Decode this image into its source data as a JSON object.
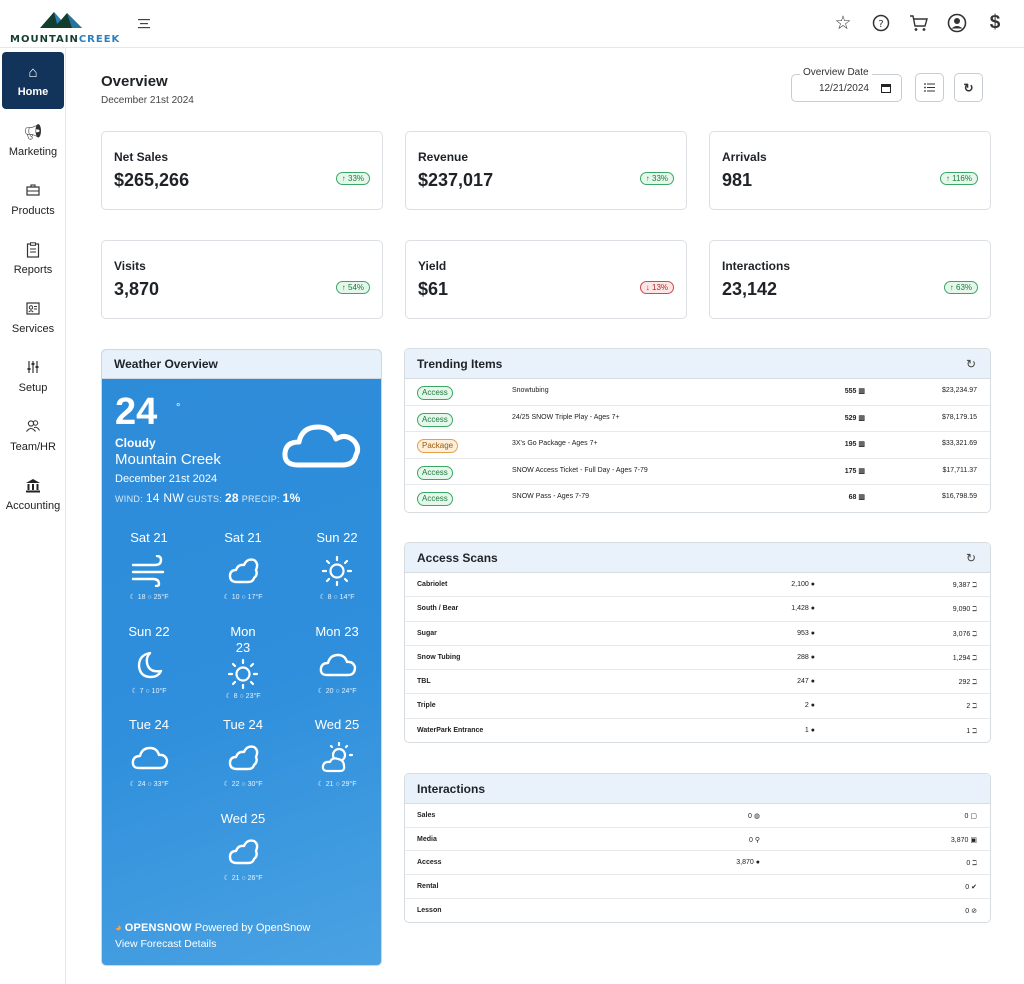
{
  "brand": {
    "name_a": "MOUNTAIN",
    "name_b": "CREEK"
  },
  "topbar": {
    "icons": [
      "star-icon",
      "help-icon",
      "cart-icon",
      "account-icon",
      "dollar-icon"
    ]
  },
  "sidebar": {
    "items": [
      {
        "label": "Home",
        "icon": "home-icon",
        "active": true
      },
      {
        "label": "Marketing",
        "icon": "megaphone-icon"
      },
      {
        "label": "Products",
        "icon": "briefcase-icon"
      },
      {
        "label": "Reports",
        "icon": "clipboard-icon"
      },
      {
        "label": "Services",
        "icon": "id-card-icon"
      },
      {
        "label": "Setup",
        "icon": "sliders-icon"
      },
      {
        "label": "Team/HR",
        "icon": "team-icon"
      },
      {
        "label": "Accounting",
        "icon": "bank-icon"
      }
    ]
  },
  "overview": {
    "title": "Overview",
    "date": "December 21st 2024",
    "date_field_label": "Overview Date",
    "date_field_value": "12/21/2024"
  },
  "kpis": [
    {
      "label": "Net Sales",
      "value": "$265,266",
      "change": "↑ 33%",
      "dir": "up"
    },
    {
      "label": "Revenue",
      "value": "$237,017",
      "change": "↑ 33%",
      "dir": "up"
    },
    {
      "label": "Arrivals",
      "value": "981",
      "change": "↑ 116%",
      "dir": "up"
    },
    {
      "label": "Visits",
      "value": "3,870",
      "change": "↑ 54%",
      "dir": "up"
    },
    {
      "label": "Yield",
      "value": "$61",
      "change": "↓ 13%",
      "dir": "down"
    },
    {
      "label": "Interactions",
      "value": "23,142",
      "change": "↑ 63%",
      "dir": "up"
    }
  ],
  "weather": {
    "title": "Weather Overview",
    "temp": "24",
    "deg": "°",
    "condition": "Cloudy",
    "location": "Mountain Creek",
    "date": "December 21st 2024",
    "wind_label": "WIND:",
    "wind": "14 NW",
    "gusts_label": "GUSTS:",
    "gusts": "28",
    "precip_label": "PRECIP:",
    "precip": "1%",
    "forecast": [
      {
        "day": "Sat 21",
        "icon": "wind-icon",
        "temps": "☾ 18 ○ 25°F"
      },
      {
        "day": "Sat 21",
        "icon": "cloud-sun-icon",
        "temps": "☾ 10 ○ 17°F"
      },
      {
        "day": "Sun 22",
        "icon": "sun-icon",
        "temps": "☾ 8 ○ 14°F"
      },
      {
        "day": "Sun 22",
        "icon": "moon-icon",
        "temps": "☾ 7 ○ 10°F"
      },
      {
        "day": "Mon 23",
        "icon": "sun-icon",
        "temps": "☾ 8 ○ 23°F"
      },
      {
        "day": "Mon 23",
        "icon": "cloud-icon",
        "temps": "☾ 20 ○ 24°F"
      },
      {
        "day": "Tue 24",
        "icon": "cloud-icon",
        "temps": "☾ 24 ○ 33°F"
      },
      {
        "day": "Tue 24",
        "icon": "cloud-sun-icon",
        "temps": "☾ 22 ○ 30°F"
      },
      {
        "day": "Wed 25",
        "icon": "sun-cloud-icon",
        "temps": "☾ 21 ○ 29°F"
      },
      {
        "day": "Wed 25",
        "icon": "cloud-sun-icon",
        "temps": "☾ 21 ○ 26°F"
      }
    ],
    "powered_brand": "OPENSNOW",
    "powered_text": "Powered by OpenSnow",
    "link": "View Forecast Details"
  },
  "trending": {
    "title": "Trending Items",
    "rows": [
      {
        "tag": "Access",
        "name": "Snowtubing",
        "qty": "555",
        "amount": "$23,234.97"
      },
      {
        "tag": "Access",
        "name": "24/25 SNOW Triple Play - Ages 7+",
        "qty": "529",
        "amount": "$78,179.15"
      },
      {
        "tag": "Package",
        "name": "3X's Go Package - Ages 7+",
        "qty": "195",
        "amount": "$33,321.69"
      },
      {
        "tag": "Access",
        "name": "SNOW Access Ticket - Full Day - Ages 7-79",
        "qty": "175",
        "amount": "$17,711.37"
      },
      {
        "tag": "Access",
        "name": "SNOW Pass - Ages 7-79",
        "qty": "68",
        "amount": "$16,798.59"
      }
    ]
  },
  "scans": {
    "title": "Access Scans",
    "rows": [
      {
        "name": "Cabriolet",
        "people": "2,100",
        "scans": "9,387"
      },
      {
        "name": "South / Bear",
        "people": "1,428",
        "scans": "9,090"
      },
      {
        "name": "Sugar",
        "people": "953",
        "scans": "3,076"
      },
      {
        "name": "Snow Tubing",
        "people": "288",
        "scans": "1,294"
      },
      {
        "name": "TBL",
        "people": "247",
        "scans": "292"
      },
      {
        "name": "Triple",
        "people": "2",
        "scans": "2"
      },
      {
        "name": "WaterPark Entrance",
        "people": "1",
        "scans": "1"
      }
    ]
  },
  "interactions": {
    "title": "Interactions",
    "rows": [
      {
        "name": "Sales",
        "v1": "0",
        "v2": "0"
      },
      {
        "name": "Media",
        "v1": "0",
        "v2": "3,870"
      },
      {
        "name": "Access",
        "v1": "3,870",
        "v2": "0"
      },
      {
        "name": "Rental",
        "v1": "",
        "v2": "0"
      },
      {
        "name": "Lesson",
        "v1": "",
        "v2": "0"
      }
    ]
  }
}
